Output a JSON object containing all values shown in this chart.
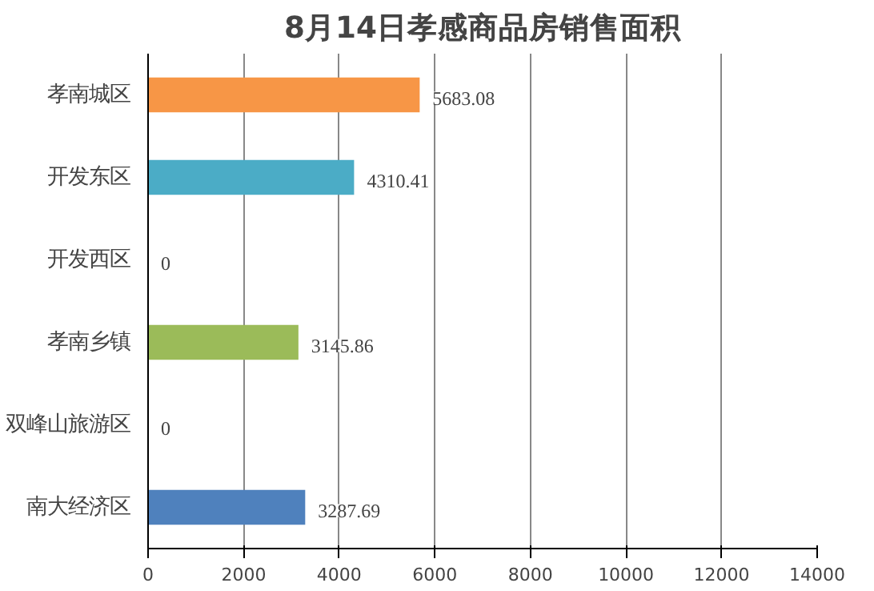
{
  "chart_data": {
    "type": "bar",
    "orientation": "horizontal",
    "title": "8月14日孝感商品房销售面积",
    "categories": [
      "孝南城区",
      "开发东区",
      "开发西区",
      "孝南乡镇",
      "双峰山旅游区",
      "南大经济区"
    ],
    "values": [
      5683.08,
      4310.41,
      0,
      3145.86,
      0,
      3287.69
    ],
    "colors": [
      "#f79646",
      "#4bacc6",
      "#4bacc6",
      "#9bbb59",
      "#9bbb59",
      "#4f81bd"
    ],
    "value_labels": [
      "5683.08",
      "4310.41",
      "0",
      "3145.86",
      "0",
      "3287.69"
    ],
    "xlim": [
      0,
      14000
    ],
    "xticks": [
      0,
      2000,
      4000,
      6000,
      8000,
      10000,
      12000,
      14000
    ],
    "grid": "x"
  }
}
